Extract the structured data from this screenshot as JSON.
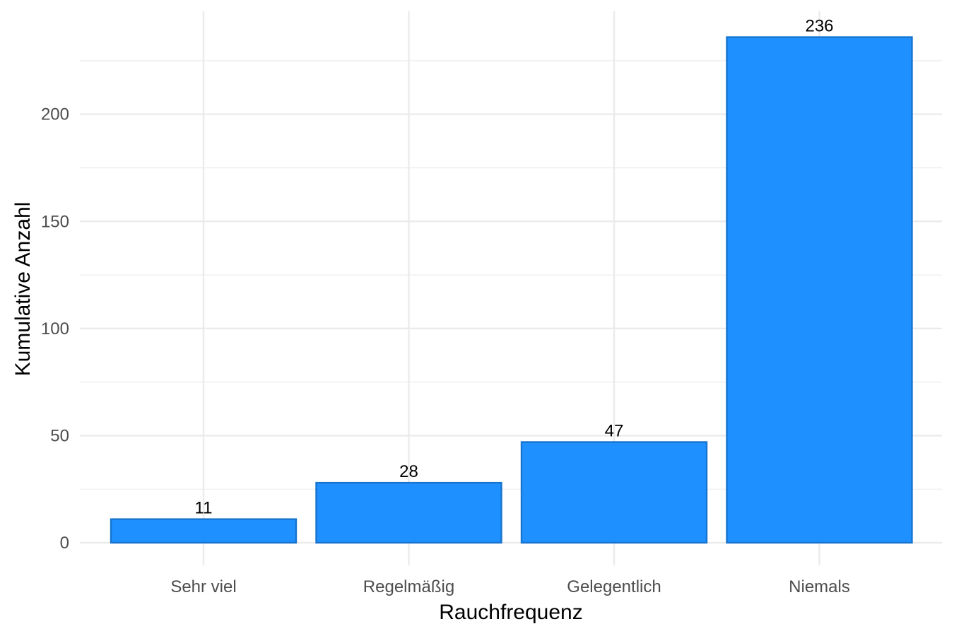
{
  "chart_data": {
    "type": "bar",
    "categories": [
      "Sehr viel",
      "Regelmäßig",
      "Gelegentlich",
      "Niemals"
    ],
    "values": [
      11,
      28,
      47,
      236
    ],
    "data_labels": [
      "11",
      "28",
      "47",
      "236"
    ],
    "title": "",
    "xlabel": "Rauchfrequenz",
    "ylabel": "Kumulative Anzahl",
    "ylim": [
      0,
      248
    ],
    "y_ticks": [
      0,
      50,
      100,
      150,
      200
    ],
    "y_tick_labels": [
      "0",
      "50",
      "100",
      "150",
      "200"
    ],
    "y_minor_ticks": [
      25,
      75,
      125,
      175,
      225
    ],
    "grid": true,
    "legend": "none",
    "colors": {
      "bar_fill": "#1e90ff",
      "bar_stroke": "#1874cd",
      "grid": "#ebebeb",
      "tick_text": "#4d4d4d",
      "title_text": "#000000"
    }
  }
}
